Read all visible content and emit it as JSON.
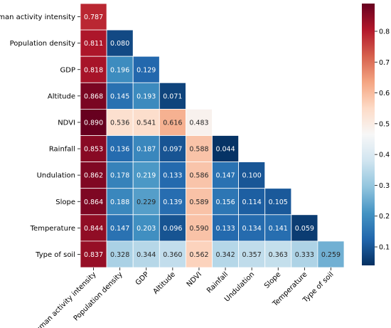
{
  "chart_data": {
    "type": "heatmap",
    "title": "",
    "xlabel": "",
    "ylabel": "",
    "row_labels": [
      "Human activity intensity",
      "Population density",
      "GDP",
      "Altitude",
      "NDVI",
      "Rainfall",
      "Undulation",
      "Slope",
      "Temperature",
      "Type of soil"
    ],
    "col_labels": [
      "Human activity intensity",
      "Population density",
      "GDP",
      "Altitude",
      "NDVI",
      "Rainfall",
      "Undulation",
      "Slope",
      "Temperature",
      "Type of soil"
    ],
    "values": [
      [
        0.787
      ],
      [
        0.811,
        0.08
      ],
      [
        0.818,
        0.196,
        0.129
      ],
      [
        0.868,
        0.145,
        0.193,
        0.071
      ],
      [
        0.89,
        0.536,
        0.541,
        0.616,
        0.483
      ],
      [
        0.853,
        0.136,
        0.187,
        0.097,
        0.588,
        0.044
      ],
      [
        0.862,
        0.178,
        0.219,
        0.133,
        0.586,
        0.147,
        0.1
      ],
      [
        0.864,
        0.188,
        0.229,
        0.139,
        0.589,
        0.156,
        0.114,
        0.105
      ],
      [
        0.844,
        0.147,
        0.203,
        0.096,
        0.59,
        0.133,
        0.134,
        0.141,
        0.059
      ],
      [
        0.837,
        0.328,
        0.344,
        0.36,
        0.562,
        0.342,
        0.357,
        0.363,
        0.333,
        0.259
      ]
    ],
    "value_labels": [
      [
        "0.787"
      ],
      [
        "0.811",
        "0.080"
      ],
      [
        "0.818",
        "0.196",
        "0.129"
      ],
      [
        "0.868",
        "0.145",
        "0.193",
        "0.071"
      ],
      [
        "0.890",
        "0.536",
        "0.541",
        "0.616",
        "0.483"
      ],
      [
        "0.853",
        "0.136",
        "0.187",
        "0.097",
        "0.588",
        "0.044"
      ],
      [
        "0.862",
        "0.178",
        "0.219",
        "0.133",
        "0.586",
        "0.147",
        "0.100"
      ],
      [
        "0.864",
        "0.188",
        "0.229",
        "0.139",
        "0.589",
        "0.156",
        "0.114",
        "0.105"
      ],
      [
        "0.844",
        "0.147",
        "0.203",
        "0.096",
        "0.590",
        "0.133",
        "0.134",
        "0.141",
        "0.059"
      ],
      [
        "0.837",
        "0.328",
        "0.344",
        "0.360",
        "0.562",
        "0.342",
        "0.357",
        "0.363",
        "0.333",
        "0.259"
      ]
    ],
    "colorbar": {
      "colormap": "RdBu_r",
      "vmin": 0.04,
      "vmax": 0.89,
      "ticks": [
        0.1,
        0.2,
        0.3,
        0.4,
        0.5,
        0.6,
        0.7,
        0.8
      ],
      "tick_labels": [
        "0.1",
        "0.2",
        "0.3",
        "0.4",
        "0.5",
        "0.6",
        "0.7",
        "0.8"
      ],
      "placement": "right"
    },
    "mask": "upper-triangle"
  }
}
